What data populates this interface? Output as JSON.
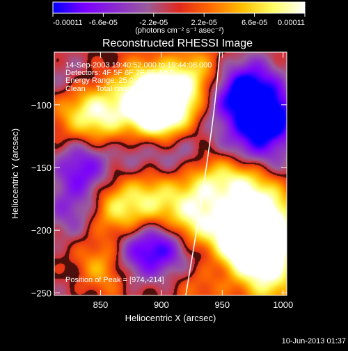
{
  "colorbar": {
    "tick_labels": [
      "-0.00011",
      "-6.6e-05",
      "-2.2e-05",
      "2.2e-05",
      "6.6e-05",
      "0.00011"
    ],
    "tick_values": [
      -0.00011,
      -6.6e-05,
      -2.2e-05,
      2.2e-05,
      6.6e-05,
      0.00011
    ],
    "units_label": "(photons cm⁻² s⁻¹ asec⁻²)",
    "colors": [
      "#0000ff",
      "#7a00ff",
      "#8b2ad0",
      "#9a5c9c",
      "#e1281e",
      "#ff6a00",
      "#ffbe00",
      "#ffff64",
      "#ffffff"
    ]
  },
  "annotations": {
    "line1": "14-Sep-2003 19:40:52.000 to 19:44:08.000",
    "line2": "Detectors: 4F 5F 6F 7F 8F, Att 0",
    "line3": "Energy Range: 25.0 - 50.0 keV",
    "line4": "Clean     Total counts: 3.03E+03",
    "peak": "Position of Peak = [974,-214]"
  },
  "footer": {
    "timestamp": "10-Jun-2013 01:37"
  },
  "chart_data": {
    "type": "heatmap",
    "title": "Reconstructed RHESSI Image",
    "xlabel": "Heliocentric X (arcsec)",
    "ylabel": "Heliocentric Y (arcsec)",
    "xlim": [
      812,
      1003
    ],
    "ylim": [
      -252,
      -58
    ],
    "x_ticks": [
      850,
      900,
      950,
      1000
    ],
    "y_ticks": [
      -100,
      -150,
      -200,
      -250
    ],
    "x_tick_labels": [
      "850",
      "900",
      "950",
      "1000"
    ],
    "y_tick_labels": [
      "−100",
      "−150",
      "−200",
      "−250"
    ],
    "zlim": [
      -0.00011,
      0.00011
    ],
    "limb_curve": [
      [
        948,
        -58
      ],
      [
        944,
        -100
      ],
      [
        937,
        -150
      ],
      [
        929,
        -200
      ],
      [
        920,
        -252
      ]
    ],
    "blobs": [
      {
        "x": 893,
        "y": -108,
        "value": 0.000105
      },
      {
        "x": 905,
        "y": -98,
        "value": 0.00011
      },
      {
        "x": 852,
        "y": -108,
        "value": 8e-05
      },
      {
        "x": 885,
        "y": -88,
        "value": 8e-05
      },
      {
        "x": 830,
        "y": -105,
        "value": 5e-05
      },
      {
        "x": 927,
        "y": -78,
        "value": 7e-05
      },
      {
        "x": 935,
        "y": -165,
        "value": 7e-05
      },
      {
        "x": 865,
        "y": -183,
        "value": 7.5e-05
      },
      {
        "x": 895,
        "y": -175,
        "value": 7e-05
      },
      {
        "x": 925,
        "y": -195,
        "value": 9e-05
      },
      {
        "x": 960,
        "y": -205,
        "value": 0.00011
      },
      {
        "x": 975,
        "y": -215,
        "value": 0.00011
      },
      {
        "x": 990,
        "y": -205,
        "value": 0.0001
      },
      {
        "x": 965,
        "y": -160,
        "value": 8e-05
      },
      {
        "x": 985,
        "y": -178,
        "value": 8e-05
      },
      {
        "x": 850,
        "y": -230,
        "value": 6e-05
      },
      {
        "x": 935,
        "y": -238,
        "value": 5e-05
      },
      {
        "x": 990,
        "y": -240,
        "value": 7e-05
      },
      {
        "x": 822,
        "y": -80,
        "value": -3e-05
      },
      {
        "x": 955,
        "y": -95,
        "value": -7e-05
      },
      {
        "x": 975,
        "y": -85,
        "value": -9e-05
      },
      {
        "x": 992,
        "y": -110,
        "value": -0.00011
      },
      {
        "x": 970,
        "y": -130,
        "value": -7e-05
      },
      {
        "x": 835,
        "y": -150,
        "value": -8e-05
      },
      {
        "x": 825,
        "y": -185,
        "value": -5e-05
      },
      {
        "x": 882,
        "y": -135,
        "value": -4e-05
      },
      {
        "x": 915,
        "y": -140,
        "value": -4e-05
      },
      {
        "x": 905,
        "y": -212,
        "value": -8e-05
      },
      {
        "x": 880,
        "y": -218,
        "value": -7e-05
      },
      {
        "x": 940,
        "y": -225,
        "value": -5e-05
      },
      {
        "x": 990,
        "y": -150,
        "value": -3e-05
      },
      {
        "x": 830,
        "y": -245,
        "value": -2e-05
      }
    ]
  }
}
